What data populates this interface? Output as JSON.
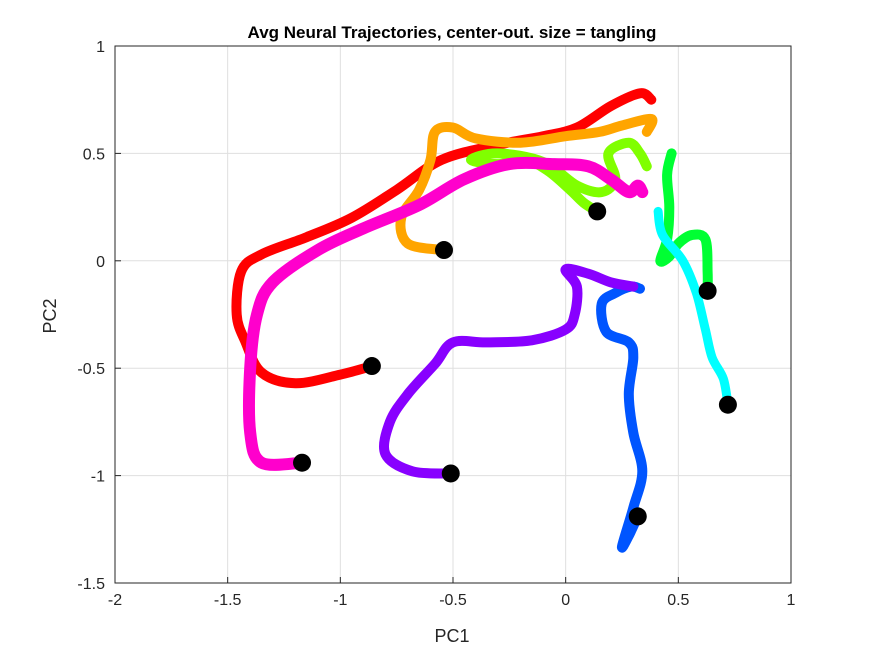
{
  "chart_data": {
    "type": "line",
    "title": "Avg Neural Trajectories, center-out. size = tangling",
    "xlabel": "PC1",
    "ylabel": "PC2",
    "xlim": [
      -2,
      1
    ],
    "ylim": [
      -1.5,
      1
    ],
    "xticks": [
      "-2",
      "-1.5",
      "-1",
      "-0.5",
      "0",
      "0.5",
      "1"
    ],
    "yticks": [
      "-1.5",
      "-1",
      "-0.5",
      "0",
      "0.5",
      "1"
    ],
    "grid": true,
    "legend": "none",
    "series": [
      {
        "color": "#ff0000",
        "width": 10,
        "end_marker": [
          -0.86,
          -0.49
        ],
        "points": [
          [
            -0.86,
            -0.49
          ],
          [
            -1.0,
            -0.53
          ],
          [
            -1.2,
            -0.57
          ],
          [
            -1.35,
            -0.52
          ],
          [
            -1.42,
            -0.38
          ],
          [
            -1.46,
            -0.25
          ],
          [
            -1.44,
            -0.05
          ],
          [
            -1.35,
            0.03
          ],
          [
            -1.15,
            0.11
          ],
          [
            -0.95,
            0.2
          ],
          [
            -0.75,
            0.33
          ],
          [
            -0.55,
            0.47
          ],
          [
            -0.3,
            0.54
          ],
          [
            -0.1,
            0.58
          ],
          [
            0.05,
            0.62
          ],
          [
            0.2,
            0.72
          ],
          [
            0.33,
            0.78
          ],
          [
            0.38,
            0.75
          ]
        ]
      },
      {
        "color": "#ffa500",
        "width": 10,
        "end_marker": [
          -0.54,
          0.05
        ],
        "points": [
          [
            -0.54,
            0.05
          ],
          [
            -0.7,
            0.08
          ],
          [
            -0.73,
            0.2
          ],
          [
            -0.65,
            0.33
          ],
          [
            -0.6,
            0.47
          ],
          [
            -0.58,
            0.6
          ],
          [
            -0.5,
            0.62
          ],
          [
            -0.4,
            0.57
          ],
          [
            -0.2,
            0.55
          ],
          [
            0.0,
            0.58
          ],
          [
            0.15,
            0.6
          ],
          [
            0.25,
            0.63
          ],
          [
            0.38,
            0.66
          ],
          [
            0.36,
            0.6
          ]
        ]
      },
      {
        "color": "#80ff00",
        "width": 10,
        "end_marker": [
          0.14,
          0.23
        ],
        "points": [
          [
            0.14,
            0.23
          ],
          [
            0.08,
            0.27
          ],
          [
            0.02,
            0.33
          ],
          [
            -0.08,
            0.42
          ],
          [
            -0.18,
            0.47
          ],
          [
            -0.3,
            0.45
          ],
          [
            -0.42,
            0.47
          ],
          [
            -0.3,
            0.5
          ],
          [
            -0.1,
            0.46
          ],
          [
            0.05,
            0.35
          ],
          [
            0.16,
            0.32
          ],
          [
            0.22,
            0.38
          ],
          [
            0.19,
            0.5
          ],
          [
            0.28,
            0.55
          ],
          [
            0.33,
            0.5
          ],
          [
            0.36,
            0.44
          ]
        ]
      },
      {
        "color": "#00ff33",
        "width": 10,
        "end_marker": [
          0.63,
          -0.14
        ],
        "points": [
          [
            0.63,
            -0.14
          ],
          [
            0.63,
            -0.05
          ],
          [
            0.62,
            0.1
          ],
          [
            0.56,
            0.12
          ],
          [
            0.5,
            0.08
          ],
          [
            0.46,
            0.02
          ],
          [
            0.42,
            0.0
          ],
          [
            0.45,
            0.1
          ],
          [
            0.46,
            0.25
          ],
          [
            0.45,
            0.4
          ],
          [
            0.47,
            0.5
          ]
        ]
      },
      {
        "color": "#00ffff",
        "width": 9,
        "end_marker": [
          0.72,
          -0.67
        ],
        "points": [
          [
            0.72,
            -0.67
          ],
          [
            0.7,
            -0.55
          ],
          [
            0.65,
            -0.45
          ],
          [
            0.62,
            -0.32
          ],
          [
            0.58,
            -0.15
          ],
          [
            0.52,
            0.0
          ],
          [
            0.43,
            0.12
          ],
          [
            0.41,
            0.23
          ]
        ]
      },
      {
        "color": "#0055ff",
        "width": 10,
        "end_marker": [
          0.32,
          -1.19
        ],
        "points": [
          [
            0.32,
            -1.19
          ],
          [
            0.28,
            -1.28
          ],
          [
            0.25,
            -1.33
          ],
          [
            0.3,
            -1.15
          ],
          [
            0.34,
            -0.98
          ],
          [
            0.3,
            -0.8
          ],
          [
            0.28,
            -0.62
          ],
          [
            0.3,
            -0.45
          ],
          [
            0.28,
            -0.38
          ],
          [
            0.18,
            -0.33
          ],
          [
            0.16,
            -0.2
          ],
          [
            0.22,
            -0.15
          ],
          [
            0.29,
            -0.12
          ],
          [
            0.33,
            -0.13
          ]
        ]
      },
      {
        "color": "#8800ff",
        "width": 10,
        "end_marker": [
          -0.51,
          -0.99
        ],
        "points": [
          [
            -0.51,
            -0.99
          ],
          [
            -0.68,
            -0.98
          ],
          [
            -0.8,
            -0.9
          ],
          [
            -0.78,
            -0.75
          ],
          [
            -0.7,
            -0.62
          ],
          [
            -0.58,
            -0.48
          ],
          [
            -0.5,
            -0.38
          ],
          [
            -0.35,
            -0.38
          ],
          [
            -0.15,
            -0.37
          ],
          [
            0.0,
            -0.32
          ],
          [
            0.04,
            -0.25
          ],
          [
            0.05,
            -0.12
          ],
          [
            0.0,
            -0.04
          ],
          [
            0.1,
            -0.06
          ],
          [
            0.2,
            -0.1
          ],
          [
            0.3,
            -0.12
          ]
        ]
      },
      {
        "color": "#ff00cc",
        "width": 12,
        "end_marker": [
          -1.17,
          -0.94
        ],
        "points": [
          [
            -1.17,
            -0.94
          ],
          [
            -1.35,
            -0.94
          ],
          [
            -1.4,
            -0.8
          ],
          [
            -1.4,
            -0.5
          ],
          [
            -1.37,
            -0.25
          ],
          [
            -1.3,
            -0.1
          ],
          [
            -1.1,
            0.05
          ],
          [
            -0.9,
            0.15
          ],
          [
            -0.65,
            0.26
          ],
          [
            -0.45,
            0.38
          ],
          [
            -0.25,
            0.45
          ],
          [
            -0.05,
            0.45
          ],
          [
            0.1,
            0.44
          ],
          [
            0.2,
            0.38
          ],
          [
            0.28,
            0.32
          ],
          [
            0.32,
            0.35
          ],
          [
            0.34,
            0.32
          ]
        ]
      }
    ]
  }
}
